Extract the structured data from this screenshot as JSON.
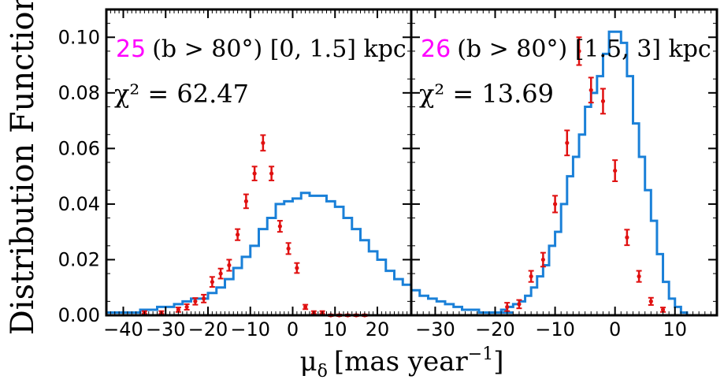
{
  "chart_data": [
    {
      "type": "histogram-with-errorbars",
      "panel_id": "25",
      "title_suffix": "(b > 80°)  [0, 1.5] kpc",
      "chi2_text": "χ² = 62.47",
      "xlim": [
        -44,
        28
      ],
      "ylim": [
        0,
        0.11
      ],
      "x_ticks": [
        -40,
        -30,
        -20,
        -10,
        0,
        10,
        20
      ],
      "model_color": "#1a80d8",
      "data_color": "#e01010",
      "model_step": {
        "bin_width": 2,
        "x_start": -44,
        "values": [
          0.001,
          0.001,
          0.001,
          0.001,
          0.002,
          0.002,
          0.003,
          0.003,
          0.004,
          0.005,
          0.006,
          0.006,
          0.008,
          0.01,
          0.013,
          0.017,
          0.021,
          0.025,
          0.031,
          0.035,
          0.04,
          0.041,
          0.042,
          0.044,
          0.043,
          0.043,
          0.041,
          0.039,
          0.035,
          0.031,
          0.027,
          0.023,
          0.02,
          0.016,
          0.013,
          0.011,
          0.009,
          0.007,
          0.006,
          0.005,
          0.004,
          0.003,
          0.002,
          0.002,
          0.001,
          0.001,
          0.001,
          0.001
        ]
      },
      "observed": {
        "x": [
          -35,
          -31,
          -27,
          -25,
          -23,
          -21,
          -19,
          -17,
          -15,
          -13,
          -11,
          -9,
          -7,
          -5,
          -3,
          -1,
          1,
          3,
          5,
          7,
          9,
          11,
          13,
          15,
          17
        ],
        "y": [
          0.001,
          0.001,
          0.002,
          0.003,
          0.005,
          0.006,
          0.012,
          0.015,
          0.018,
          0.029,
          0.041,
          0.051,
          0.062,
          0.051,
          0.032,
          0.024,
          0.017,
          0.003,
          0.001,
          0.001,
          0.0,
          0.0,
          0.0,
          0.0,
          0.0
        ],
        "err": [
          0.0005,
          0.0005,
          0.0008,
          0.001,
          0.0012,
          0.0014,
          0.0018,
          0.0018,
          0.002,
          0.002,
          0.0025,
          0.0025,
          0.0028,
          0.0025,
          0.002,
          0.002,
          0.0018,
          0.0008,
          0.0005,
          0.0005,
          0.0003,
          0.0003,
          0.0003,
          0.0003,
          0.0003
        ]
      }
    },
    {
      "type": "histogram-with-errorbars",
      "panel_id": "26",
      "title_suffix": "(b > 80°)  [1.5, 3] kpc",
      "chi2_text": "χ² = 13.69",
      "xlim": [
        -34,
        17
      ],
      "ylim": [
        0,
        0.11
      ],
      "x_ticks": [
        -30,
        -20,
        -10,
        0,
        10
      ],
      "model_color": "#1a80d8",
      "data_color": "#e01010",
      "model_step": {
        "bin_width": 1,
        "x_start": -34,
        "values": [
          0,
          0,
          0,
          0,
          0,
          0,
          0,
          0,
          0,
          0,
          0,
          0,
          0,
          0.001,
          0.001,
          0.002,
          0.003,
          0.004,
          0.005,
          0.007,
          0.01,
          0.014,
          0.018,
          0.025,
          0.03,
          0.04,
          0.05,
          0.057,
          0.065,
          0.075,
          0.08,
          0.086,
          0.094,
          0.102,
          0.102,
          0.098,
          0.086,
          0.069,
          0.057,
          0.045,
          0.034,
          0.022,
          0.012,
          0.006,
          0.003,
          0.001,
          0.0,
          0.0,
          0.0,
          0.0,
          0.0
        ]
      },
      "observed": {
        "x": [
          -18,
          -16,
          -14,
          -12,
          -10,
          -8,
          -6,
          -4,
          -2,
          0,
          2,
          4,
          6,
          8
        ],
        "y": [
          0.003,
          0.004,
          0.014,
          0.02,
          0.04,
          0.062,
          0.095,
          0.081,
          0.077,
          0.052,
          0.028,
          0.014,
          0.005,
          0.002
        ],
        "err": [
          0.0015,
          0.0015,
          0.002,
          0.0025,
          0.003,
          0.0045,
          0.005,
          0.0045,
          0.0045,
          0.0038,
          0.0028,
          0.002,
          0.0013,
          0.0008
        ]
      }
    }
  ],
  "shared": {
    "y_ticks": [
      0.0,
      0.02,
      0.04,
      0.06,
      0.08,
      0.1
    ],
    "y_tick_labels": [
      "0.00",
      "0.02",
      "0.04",
      "0.06",
      "0.08",
      "0.10"
    ],
    "ylabel": "Distribution Function",
    "xlabel_main": "μ",
    "xlabel_sub": "δ",
    "xlabel_rest": "[mas year",
    "xlabel_sup": "−1",
    "xlabel_close": "]"
  }
}
